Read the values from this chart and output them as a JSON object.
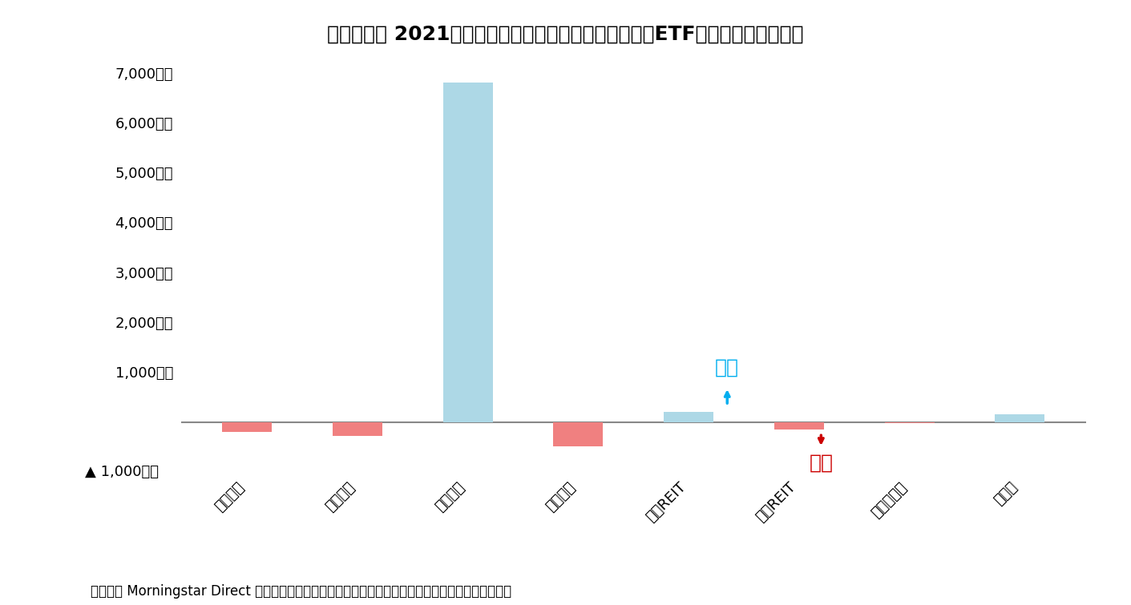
{
  "title": "》図表１》 2021年１月の日本籍追加型株式投信（除くetf）の推計資金流出入",
  "title_raw": "【図表１】 2021年１月の日本籍追加型株式投信（除くETF）の推計資金流出入",
  "categories": [
    "国内株式",
    "国内債券",
    "外国株式",
    "外国債券",
    "国内REIT",
    "外国REIT",
    "バランス型",
    "その他"
  ],
  "values": [
    -200,
    -280,
    6800,
    -480,
    200,
    -150,
    -20,
    150
  ],
  "positive_color": "#add8e6",
  "negative_color": "#f08080",
  "ylim_min": -1000,
  "ylim_max": 7000,
  "yticks": [
    1000,
    2000,
    3000,
    4000,
    5000,
    6000,
    7000
  ],
  "ytick_labels": [
    "1,000億円",
    "2,000億円",
    "3,000億円",
    "4,000億円",
    "5,000億円",
    "6,000億円",
    "7,000億円"
  ],
  "negative_label": "▲ 1,000億円",
  "annotation_inflow_text": "流入",
  "annotation_outflow_text": "流出",
  "annotation_inflow_color": "#00aeef",
  "annotation_outflow_color": "#cc0000",
  "footer": "（資料） Morningstar Direct より作成。各資産クラスはイボットソン分類を用いてファンドを分類。",
  "background_color": "#ffffff",
  "title_fontsize": 18,
  "tick_fontsize": 13,
  "annotation_fontsize": 18,
  "footer_fontsize": 12,
  "bar_width": 0.45
}
